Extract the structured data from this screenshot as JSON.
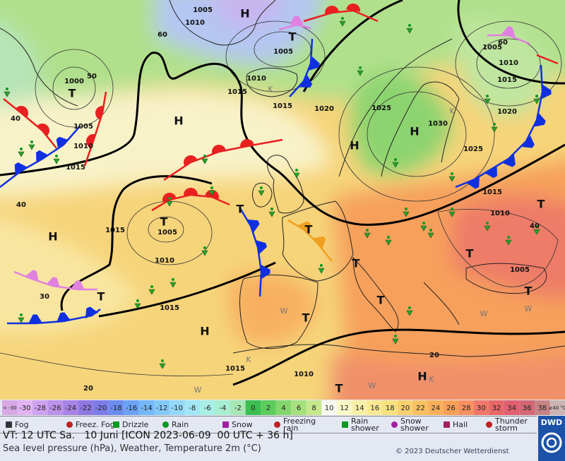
{
  "map": {
    "labels": [
      "1005",
      "1010",
      "60",
      "H",
      "1005",
      "T",
      "1010",
      "1015",
      "K",
      "1015",
      "1020",
      "1025",
      "1030",
      "H",
      "H",
      "1025",
      "K",
      "1020",
      "1015",
      "1010",
      "1005",
      "60",
      "1000",
      "T",
      "50",
      "40",
      "1005",
      "1010",
      "1015",
      "H",
      "40",
      "1015",
      "T",
      "1005",
      "1010",
      "T",
      "H",
      "T",
      "1015",
      "1010",
      "T",
      "40",
      "T",
      "T",
      "1005",
      "T",
      "30",
      "T",
      "1015",
      "T",
      "T",
      "W",
      "W",
      "W",
      "H",
      "1015",
      "K",
      "1010",
      "20",
      "H",
      "K",
      "20",
      "T",
      "W",
      "W"
    ]
  },
  "temperature_scale": [
    {
      "label": "< -30",
      "color": "#d8a8e4"
    },
    {
      "label": "-30",
      "color": "#e2b4f2"
    },
    {
      "label": "-28",
      "color": "#cfa2ee"
    },
    {
      "label": "-26",
      "color": "#bc92e8"
    },
    {
      "label": "-24",
      "color": "#a882e4"
    },
    {
      "label": "-22",
      "color": "#9078e2"
    },
    {
      "label": "-20",
      "color": "#7c7ce8"
    },
    {
      "label": "-18",
      "color": "#6c8cf0"
    },
    {
      "label": "-16",
      "color": "#6ca2f6"
    },
    {
      "label": "-14",
      "color": "#74b8f8"
    },
    {
      "label": "-12",
      "color": "#84c8f8"
    },
    {
      "label": "-10",
      "color": "#94d8f8"
    },
    {
      "label": "-8",
      "color": "#a2e6f6"
    },
    {
      "label": "-6",
      "color": "#a8eee4"
    },
    {
      "label": "-4",
      "color": "#a8eed0"
    },
    {
      "label": "-2",
      "color": "#a8e6b4"
    },
    {
      "label": "0",
      "color": "#3cbe50"
    },
    {
      "label": "2",
      "color": "#5ccc5c"
    },
    {
      "label": "4",
      "color": "#84d66c"
    },
    {
      "label": "6",
      "color": "#a6e07c"
    },
    {
      "label": "8",
      "color": "#c6e88c"
    },
    {
      "label": "10",
      "color": "#f8f8f0"
    },
    {
      "label": "12",
      "color": "#f8f8c8"
    },
    {
      "label": "14",
      "color": "#f8f0a8"
    },
    {
      "label": "16",
      "color": "#f8e892"
    },
    {
      "label": "18",
      "color": "#f8e080"
    },
    {
      "label": "20",
      "color": "#f8d070"
    },
    {
      "label": "22",
      "color": "#f8c062"
    },
    {
      "label": "24",
      "color": "#f8b05a"
    },
    {
      "label": "26",
      "color": "#f8a058"
    },
    {
      "label": "28",
      "color": "#f89060"
    },
    {
      "label": "30",
      "color": "#f07868"
    },
    {
      "label": "32",
      "color": "#e86868"
    },
    {
      "label": "34",
      "color": "#e06070"
    },
    {
      "label": "36",
      "color": "#d26874"
    },
    {
      "label": "38",
      "color": "#c88484"
    },
    {
      "label": "≥40 °C",
      "color": "#ccb4b4"
    }
  ],
  "weather_legend": [
    "Fog",
    "Freez. Fog",
    "Drizzle",
    "Rain",
    "Snow",
    "Freezing rain",
    "Rain shower",
    "Snow shower",
    "Hail",
    "Thunder storm"
  ],
  "footer": {
    "valid_time": "VT: 12 UTC Sa.   10 Juni [ICON 2023-06-09  00 UTC + 36 h]",
    "description": "Sea level pressure (hPa), Weather, Temperature 2m (°C)",
    "copyright": "© 2023 Deutscher Wetterdienst",
    "logo": "DWD"
  }
}
